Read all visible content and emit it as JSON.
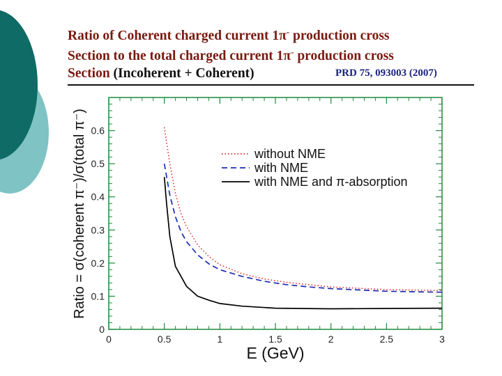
{
  "slide": {
    "title_line1_a": "Ratio of Coherent charged current 1π",
    "title_line1_sup": "-",
    "title_line1_b": " production cross",
    "title_line2_a": "Section to the total charged current 1π",
    "title_line2_sup": "-",
    "title_line2_b": " production cross",
    "title_line3_a": "Section",
    "title_line3_b": " (Incoherent + Coherent)",
    "reference": "PRD 75, 093003 (2007)"
  },
  "colors": {
    "title_text": "#7a1a10",
    "reference_text": "#1a237e",
    "deco_dark": "#0e6b66",
    "deco_light": "#7fc3c4",
    "plot_frame": "#1f8a3c",
    "series_without_nme": "#e02020",
    "series_with_nme": "#1a2bb0",
    "series_with_absorption": "#000000"
  },
  "chart_data": {
    "type": "line",
    "xlabel": "E (GeV)",
    "ylabel": "Ratio = σ(coherent π⁻)/σ(total π⁻)",
    "xlim": [
      0,
      3
    ],
    "ylim": [
      0,
      0.7
    ],
    "x_ticks": [
      "0",
      "0.5",
      "1",
      "1.5",
      "2",
      "2.5",
      "3"
    ],
    "y_ticks": [
      "0",
      "0.1",
      "0.2",
      "0.3",
      "0.4",
      "0.5",
      "0.6"
    ],
    "grid": false,
    "legend_position": "upper-right",
    "series": [
      {
        "name": "without NME",
        "style": "dotted",
        "color": "#e02020",
        "x": [
          0.5,
          0.55,
          0.6,
          0.65,
          0.7,
          0.8,
          0.9,
          1.0,
          1.2,
          1.4,
          1.6,
          1.8,
          2.0,
          2.5,
          3.0
        ],
        "y": [
          0.61,
          0.5,
          0.41,
          0.35,
          0.31,
          0.255,
          0.22,
          0.195,
          0.168,
          0.152,
          0.142,
          0.135,
          0.128,
          0.12,
          0.117
        ]
      },
      {
        "name": "with NME",
        "style": "dashed",
        "color": "#1a2bb0",
        "x": [
          0.5,
          0.55,
          0.6,
          0.65,
          0.7,
          0.8,
          0.9,
          1.0,
          1.2,
          1.4,
          1.6,
          1.8,
          2.0,
          2.5,
          3.0
        ],
        "y": [
          0.5,
          0.405,
          0.34,
          0.295,
          0.265,
          0.225,
          0.198,
          0.18,
          0.16,
          0.145,
          0.135,
          0.128,
          0.123,
          0.115,
          0.112
        ]
      },
      {
        "name": "with NME and π-absorption",
        "style": "solid",
        "color": "#000000",
        "x": [
          0.5,
          0.52,
          0.55,
          0.6,
          0.65,
          0.7,
          0.8,
          0.9,
          1.0,
          1.2,
          1.5,
          2.0,
          2.5,
          3.0
        ],
        "y": [
          0.46,
          0.38,
          0.28,
          0.19,
          0.16,
          0.13,
          0.1,
          0.088,
          0.078,
          0.07,
          0.064,
          0.062,
          0.063,
          0.064
        ]
      }
    ]
  }
}
